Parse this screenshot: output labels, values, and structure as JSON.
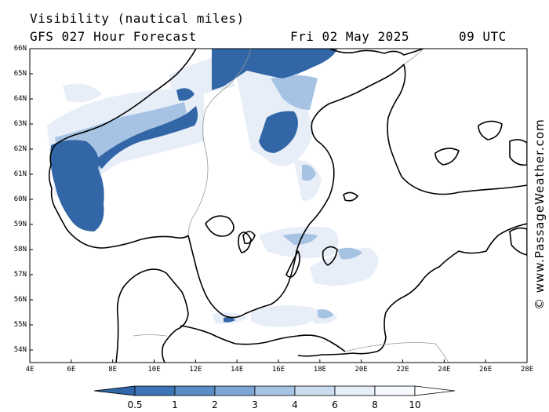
{
  "header": {
    "title": "Visibility (nautical miles)",
    "model": "GFS 027 Hour Forecast",
    "date": "Fri 02 May 2025",
    "time": "09 UTC"
  },
  "map": {
    "lat_labels": [
      "66N",
      "65N",
      "64N",
      "63N",
      "62N",
      "61N",
      "60N",
      "59N",
      "58N",
      "57N",
      "56N",
      "55N",
      "54N"
    ],
    "lon_labels": [
      "4E",
      "6E",
      "8E",
      "10E",
      "12E",
      "14E",
      "16E",
      "18E",
      "20E",
      "22E",
      "24E",
      "26E",
      "28E"
    ],
    "lat_range": [
      53.75,
      66
    ],
    "lon_range": [
      4,
      28
    ],
    "regions": [
      "Norway",
      "Sweden",
      "Finland",
      "Denmark",
      "Baltic Sea",
      "Gulf of Bothnia",
      "Gulf of Finland"
    ]
  },
  "legend": {
    "labels": [
      "0.5",
      "1",
      "2",
      "3",
      "4",
      "6",
      "8",
      "10"
    ],
    "colors": [
      "#2f66a8",
      "#3d74b4",
      "#5b8cc5",
      "#7ea6d5",
      "#a6c3e4",
      "#cbdcf0",
      "#e6eef8",
      "#ffffff"
    ]
  },
  "credit": "© www.PassageWeather.com"
}
